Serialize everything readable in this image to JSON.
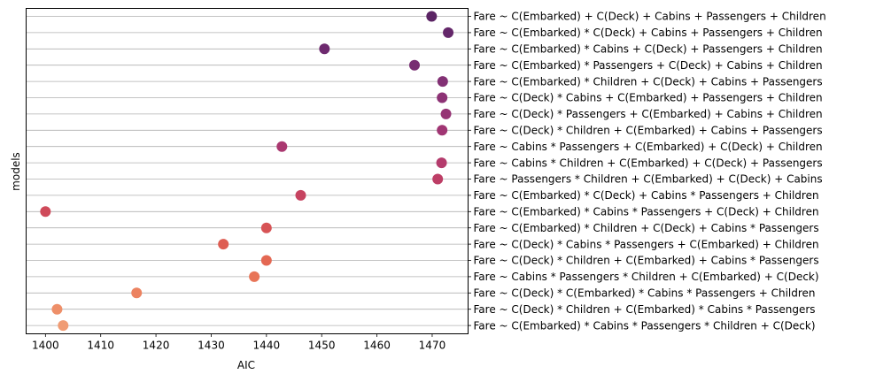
{
  "chart_data": {
    "type": "scatter",
    "orientation": "horizontal-dot",
    "xlabel": "AIC",
    "ylabel": "models",
    "xlim": [
      1396.5,
      1476.5
    ],
    "xticks": [
      1400,
      1410,
      1420,
      1430,
      1440,
      1450,
      1460,
      1470
    ],
    "grid": "horizontal",
    "ytick_position": "right",
    "points": [
      {
        "label": "Fare ~ C(Embarked) + C(Deck) + Cabins + Passengers + Children",
        "value": 1469.9,
        "color": "#5b2464"
      },
      {
        "label": "Fare ~ C(Embarked) * C(Deck) + Cabins + Passengers + Children",
        "value": 1472.9,
        "color": "#64276a"
      },
      {
        "label": "Fare ~ C(Embarked) * Cabins + C(Deck) + Passengers + Children",
        "value": 1450.5,
        "color": "#6e2a6f"
      },
      {
        "label": "Fare ~ C(Embarked) * Passengers + C(Deck) + Cabins + Children",
        "value": 1466.8,
        "color": "#782d72"
      },
      {
        "label": "Fare ~ C(Embarked) * Children + C(Deck) + Cabins + Passengers",
        "value": 1471.9,
        "color": "#823074"
      },
      {
        "label": "Fare ~ C(Deck) * Cabins + C(Embarked) + Passengers + Children",
        "value": 1471.8,
        "color": "#8d3275"
      },
      {
        "label": "Fare ~ C(Deck) * Passengers + C(Embarked) + Cabins + Children",
        "value": 1472.5,
        "color": "#963475"
      },
      {
        "label": "Fare ~ C(Deck) * Children + C(Embarked) + Cabins + Passengers",
        "value": 1471.8,
        "color": "#a03573"
      },
      {
        "label": "Fare ~ Cabins * Passengers + C(Embarked) + C(Deck) + Children",
        "value": 1442.8,
        "color": "#aa3870"
      },
      {
        "label": "Fare ~ Cabins * Children + C(Embarked) + C(Deck) + Passengers",
        "value": 1471.7,
        "color": "#b43b6c"
      },
      {
        "label": "Fare ~ Passengers * Children + C(Embarked) + C(Deck) + Cabins",
        "value": 1471.0,
        "color": "#bd3e66"
      },
      {
        "label": "Fare ~ C(Embarked) * C(Deck) + Cabins * Passengers + Children",
        "value": 1446.2,
        "color": "#c64360"
      },
      {
        "label": "Fare ~ C(Embarked) * Cabins * Passengers + C(Deck) + Children",
        "value": 1400.0,
        "color": "#cf4a5a"
      },
      {
        "label": "Fare ~ C(Embarked) * Children + C(Deck) + Cabins * Passengers",
        "value": 1440.0,
        "color": "#d75355"
      },
      {
        "label": "Fare ~ C(Deck) * Cabins * Passengers + C(Embarked) + Children",
        "value": 1432.2,
        "color": "#de5d52"
      },
      {
        "label": "Fare ~ C(Deck) * Children + C(Embarked) + Cabins * Passengers",
        "value": 1440.0,
        "color": "#e46853"
      },
      {
        "label": "Fare ~ Cabins * Passengers * Children + C(Embarked) + C(Deck)",
        "value": 1437.8,
        "color": "#e87558"
      },
      {
        "label": "Fare ~ C(Deck) * C(Embarked) * Cabins * Passengers + Children",
        "value": 1416.5,
        "color": "#ec8260"
      },
      {
        "label": "Fare ~ C(Deck) * Children + C(Embarked) * Cabins * Passengers",
        "value": 1402.1,
        "color": "#ee8f69"
      },
      {
        "label": "Fare ~ C(Embarked) * Cabins * Passengers * Children + C(Deck)",
        "value": 1403.2,
        "color": "#f09c74"
      }
    ]
  }
}
